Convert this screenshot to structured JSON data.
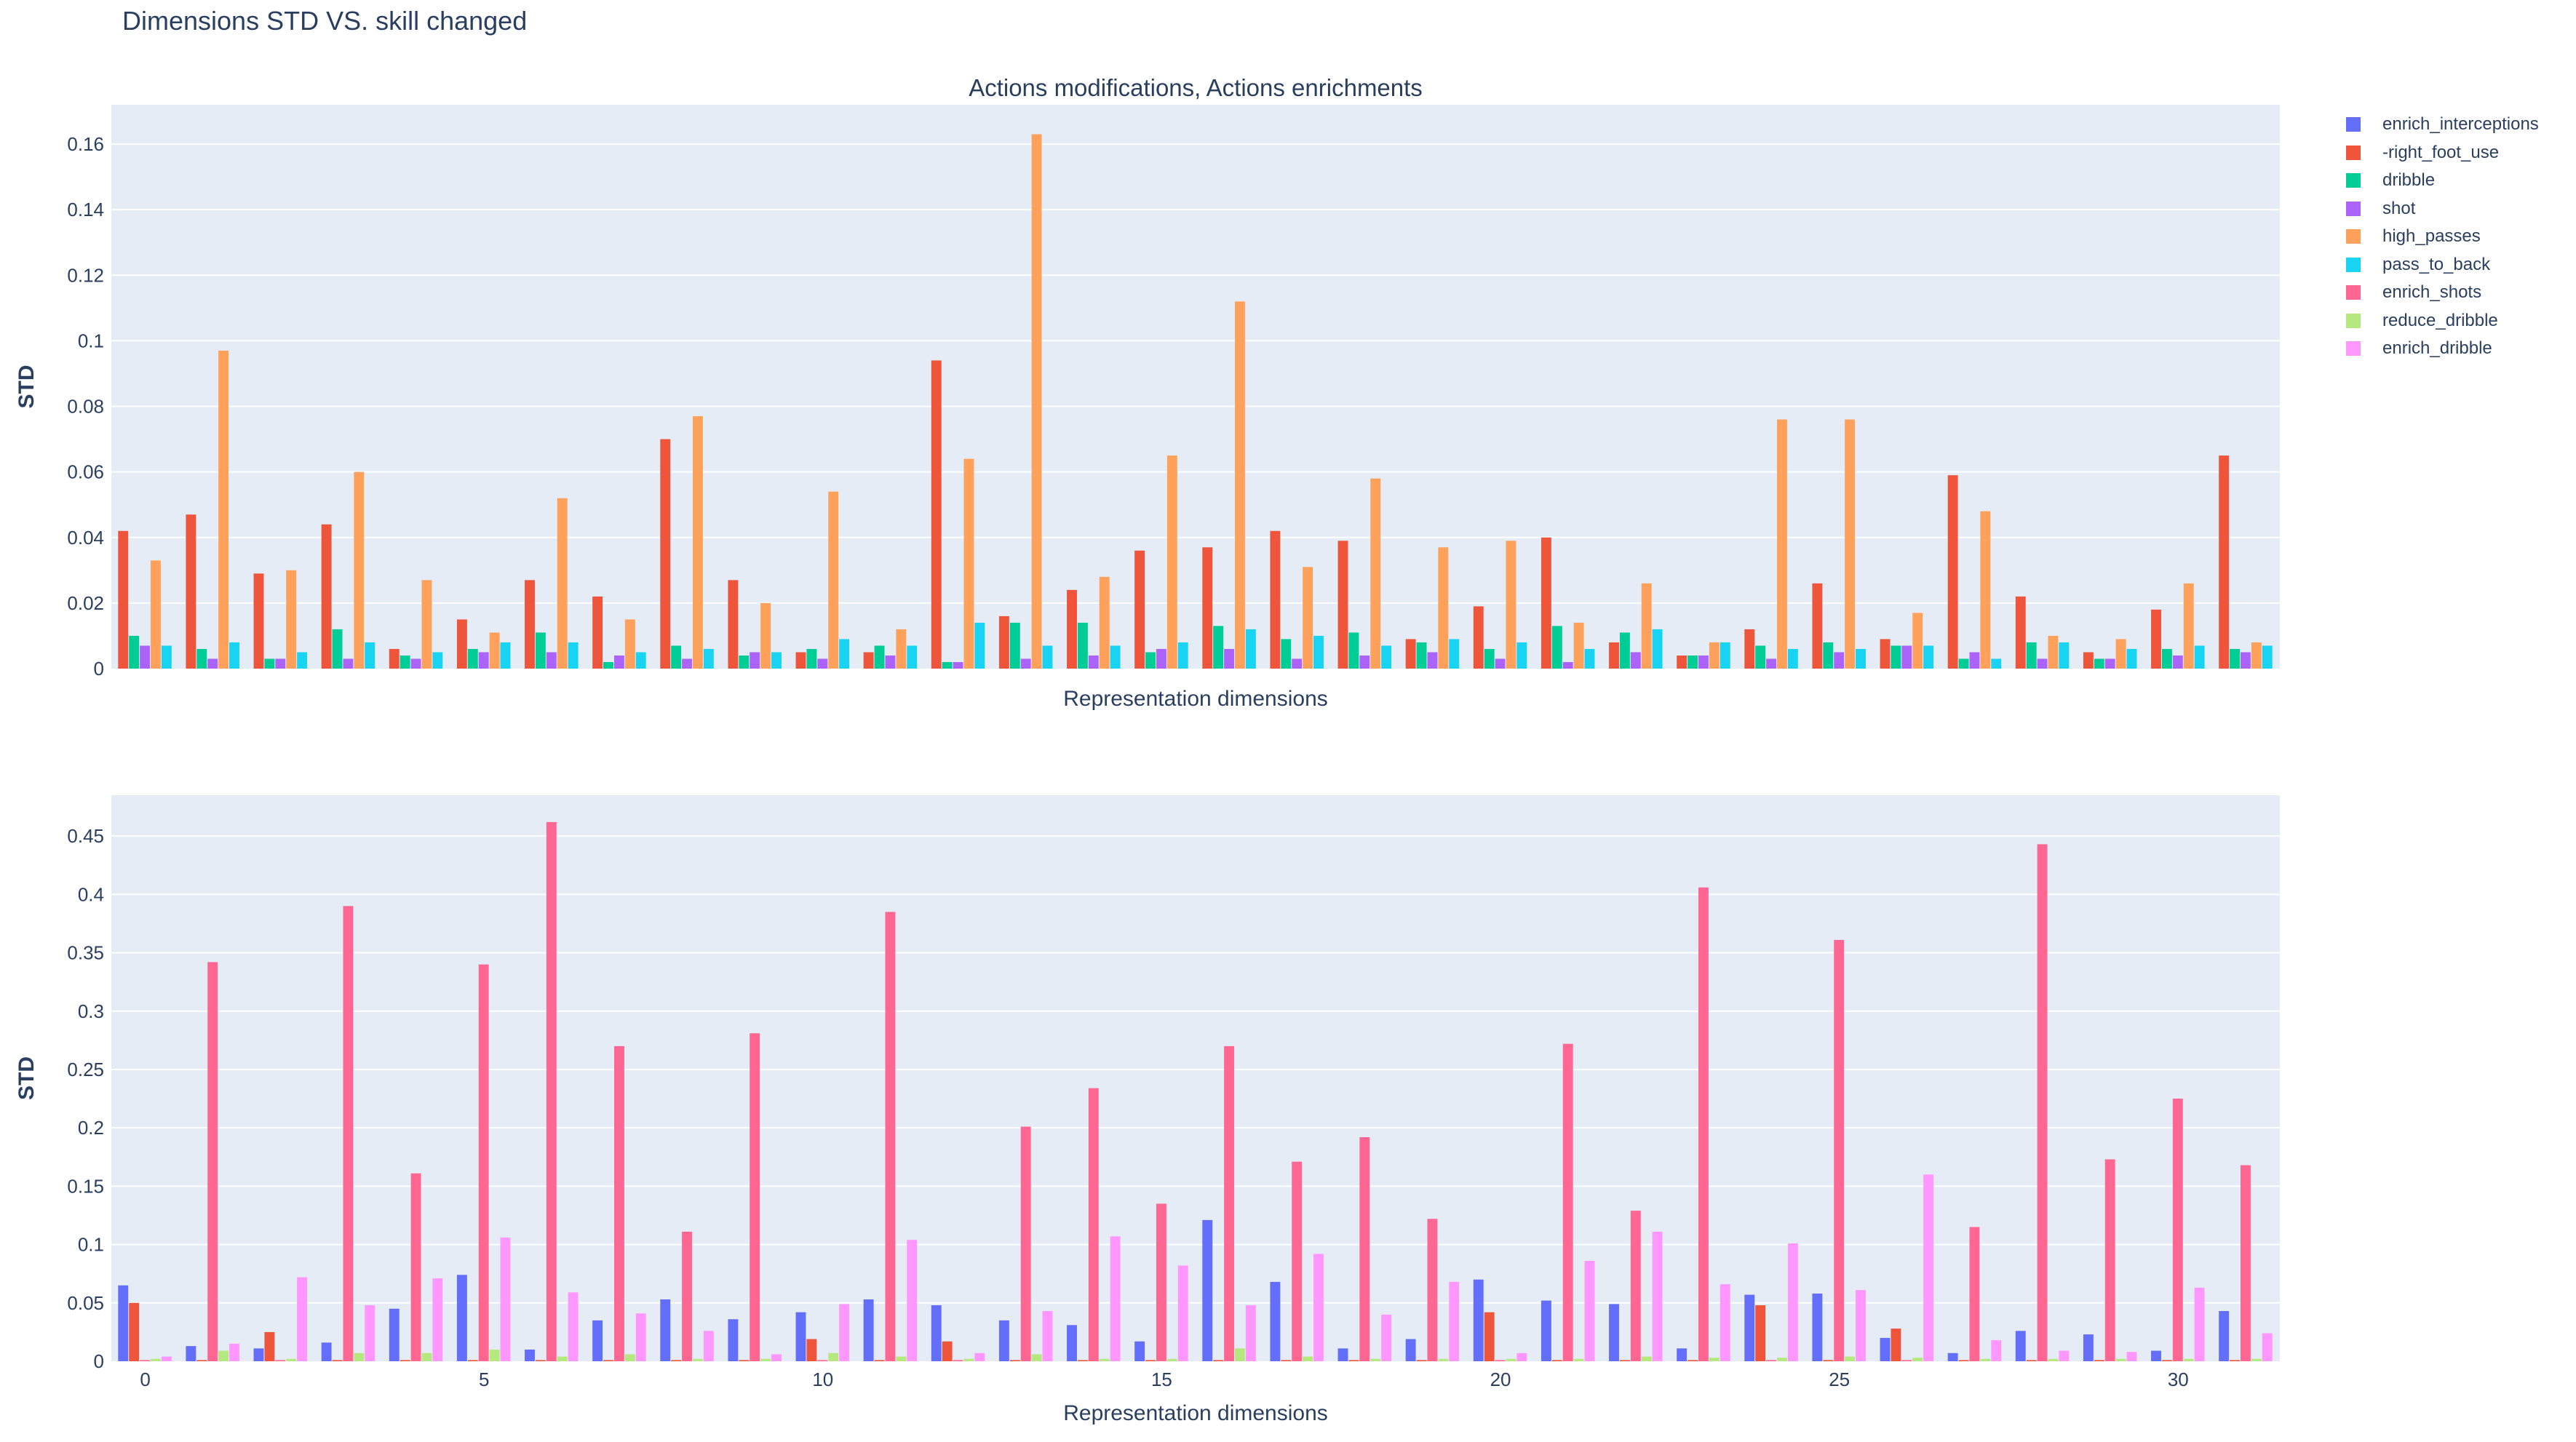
{
  "title": "Dimensions STD VS. skill changed",
  "colors": {
    "plot_bg": "#e5ecf6",
    "grid": "#ffffff",
    "text": "#2a3f5f"
  },
  "legend": [
    {
      "name": "enrich_interceptions",
      "color": "#636efa"
    },
    {
      "name": "-right_foot_use",
      "color": "#ef553b"
    },
    {
      "name": "dribble",
      "color": "#00cc96"
    },
    {
      "name": "shot",
      "color": "#ab63fa"
    },
    {
      "name": "high_passes",
      "color": "#ffa15a"
    },
    {
      "name": "pass_to_back",
      "color": "#19d3f3"
    },
    {
      "name": "enrich_shots",
      "color": "#ff6692"
    },
    {
      "name": "reduce_dribble",
      "color": "#b6e880"
    },
    {
      "name": "enrich_dribble",
      "color": "#ff97ff"
    }
  ],
  "chart_data": [
    {
      "type": "bar",
      "title": "Actions modifications, Actions enrichments",
      "xlabel": "Representation dimensions",
      "ylabel": "STD",
      "x": [
        0,
        1,
        2,
        3,
        4,
        5,
        6,
        7,
        8,
        9,
        10,
        11,
        12,
        13,
        14,
        15,
        16,
        17,
        18,
        19,
        20,
        21,
        22,
        23,
        24,
        25,
        26,
        27,
        28,
        29,
        30,
        31
      ],
      "ylim": [
        0,
        0.172
      ],
      "yticks": [
        0,
        0.02,
        0.04,
        0.06,
        0.08,
        0.1,
        0.12,
        0.14,
        0.16
      ],
      "ytick_labels": [
        "0",
        "0.02",
        "0.04",
        "0.06",
        "0.08",
        "0.1",
        "0.12",
        "0.14",
        "0.16"
      ],
      "show_xticks": false,
      "series": [
        {
          "name": "-right_foot_use",
          "color": "#ef553b",
          "values": [
            0.042,
            0.047,
            0.029,
            0.044,
            0.006,
            0.015,
            0.027,
            0.022,
            0.07,
            0.027,
            0.005,
            0.005,
            0.094,
            0.016,
            0.024,
            0.036,
            0.037,
            0.042,
            0.039,
            0.009,
            0.019,
            0.04,
            0.008,
            0.004,
            0.012,
            0.026,
            0.009,
            0.059,
            0.022,
            0.005,
            0.018,
            0.065
          ]
        },
        {
          "name": "dribble",
          "color": "#00cc96",
          "values": [
            0.01,
            0.006,
            0.003,
            0.012,
            0.004,
            0.006,
            0.011,
            0.002,
            0.007,
            0.004,
            0.006,
            0.007,
            0.002,
            0.014,
            0.014,
            0.005,
            0.013,
            0.009,
            0.011,
            0.008,
            0.006,
            0.013,
            0.011,
            0.004,
            0.007,
            0.008,
            0.007,
            0.003,
            0.008,
            0.003,
            0.006,
            0.006
          ]
        },
        {
          "name": "shot",
          "color": "#ab63fa",
          "values": [
            0.007,
            0.003,
            0.003,
            0.003,
            0.003,
            0.005,
            0.005,
            0.004,
            0.003,
            0.005,
            0.003,
            0.004,
            0.002,
            0.003,
            0.004,
            0.006,
            0.006,
            0.003,
            0.004,
            0.005,
            0.003,
            0.002,
            0.005,
            0.004,
            0.003,
            0.005,
            0.007,
            0.005,
            0.003,
            0.003,
            0.004,
            0.005
          ]
        },
        {
          "name": "high_passes",
          "color": "#ffa15a",
          "values": [
            0.033,
            0.097,
            0.03,
            0.06,
            0.027,
            0.011,
            0.052,
            0.015,
            0.077,
            0.02,
            0.054,
            0.012,
            0.064,
            0.163,
            0.028,
            0.065,
            0.112,
            0.031,
            0.058,
            0.037,
            0.039,
            0.014,
            0.026,
            0.008,
            0.076,
            0.076,
            0.017,
            0.048,
            0.01,
            0.009,
            0.026,
            0.008
          ]
        },
        {
          "name": "pass_to_back",
          "color": "#19d3f3",
          "values": [
            0.007,
            0.008,
            0.005,
            0.008,
            0.005,
            0.008,
            0.008,
            0.005,
            0.006,
            0.005,
            0.009,
            0.007,
            0.014,
            0.007,
            0.007,
            0.008,
            0.012,
            0.01,
            0.007,
            0.009,
            0.008,
            0.006,
            0.012,
            0.008,
            0.006,
            0.006,
            0.007,
            0.003,
            0.008,
            0.006,
            0.007,
            0.007
          ]
        }
      ]
    },
    {
      "type": "bar",
      "title": "",
      "xlabel": "Representation dimensions",
      "ylabel": "STD",
      "x": [
        0,
        1,
        2,
        3,
        4,
        5,
        6,
        7,
        8,
        9,
        10,
        11,
        12,
        13,
        14,
        15,
        16,
        17,
        18,
        19,
        20,
        21,
        22,
        23,
        24,
        25,
        26,
        27,
        28,
        29,
        30,
        31
      ],
      "ylim": [
        0,
        0.485
      ],
      "yticks": [
        0,
        0.05,
        0.1,
        0.15,
        0.2,
        0.25,
        0.3,
        0.35,
        0.4,
        0.45
      ],
      "ytick_labels": [
        "0",
        "0.05",
        "0.1",
        "0.15",
        "0.2",
        "0.25",
        "0.3",
        "0.35",
        "0.4",
        "0.45"
      ],
      "show_xticks": true,
      "xticks": [
        0,
        5,
        10,
        15,
        20,
        25,
        30
      ],
      "xtick_labels": [
        "0",
        "5",
        "10",
        "15",
        "20",
        "25",
        "30"
      ],
      "series": [
        {
          "name": "enrich_interceptions",
          "color": "#636efa",
          "values": [
            0.065,
            0.013,
            0.011,
            0.016,
            0.045,
            0.074,
            0.01,
            0.035,
            0.053,
            0.036,
            0.042,
            0.053,
            0.048,
            0.035,
            0.031,
            0.017,
            0.121,
            0.068,
            0.011,
            0.019,
            0.07,
            0.052,
            0.049,
            0.011,
            0.057,
            0.058,
            0.02,
            0.007,
            0.026,
            0.023,
            0.009,
            0.043
          ]
        },
        {
          "name": "-right_foot_use",
          "color": "#ef553b",
          "values": [
            0.05,
            0.001,
            0.025,
            0.001,
            0.001,
            0.001,
            0.001,
            0.001,
            0.001,
            0.001,
            0.019,
            0.001,
            0.017,
            0.001,
            0.001,
            0.001,
            0.001,
            0.001,
            0.001,
            0.001,
            0.042,
            0.001,
            0.001,
            0.001,
            0.048,
            0.001,
            0.028,
            0.001,
            0.001,
            0.001,
            0.001,
            0.001
          ]
        },
        {
          "name": "enrich_shots",
          "color": "#ff6692",
          "values": [
            0.001,
            0.342,
            0.001,
            0.39,
            0.161,
            0.34,
            0.462,
            0.27,
            0.111,
            0.281,
            0.001,
            0.385,
            0.001,
            0.201,
            0.234,
            0.135,
            0.27,
            0.171,
            0.192,
            0.122,
            0.001,
            0.272,
            0.129,
            0.406,
            0.001,
            0.361,
            0.001,
            0.115,
            0.443,
            0.173,
            0.225,
            0.168
          ]
        },
        {
          "name": "reduce_dribble",
          "color": "#b6e880",
          "values": [
            0.002,
            0.009,
            0.002,
            0.007,
            0.007,
            0.01,
            0.004,
            0.006,
            0.002,
            0.002,
            0.007,
            0.004,
            0.002,
            0.006,
            0.002,
            0.002,
            0.011,
            0.004,
            0.002,
            0.002,
            0.002,
            0.002,
            0.004,
            0.003,
            0.003,
            0.004,
            0.003,
            0.002,
            0.002,
            0.002,
            0.002,
            0.002
          ]
        },
        {
          "name": "enrich_dribble",
          "color": "#ff97ff",
          "values": [
            0.004,
            0.015,
            0.072,
            0.048,
            0.071,
            0.106,
            0.059,
            0.041,
            0.026,
            0.006,
            0.049,
            0.104,
            0.007,
            0.043,
            0.107,
            0.082,
            0.048,
            0.092,
            0.04,
            0.068,
            0.007,
            0.086,
            0.111,
            0.066,
            0.101,
            0.061,
            0.16,
            0.018,
            0.009,
            0.008,
            0.063,
            0.024
          ]
        }
      ]
    }
  ]
}
